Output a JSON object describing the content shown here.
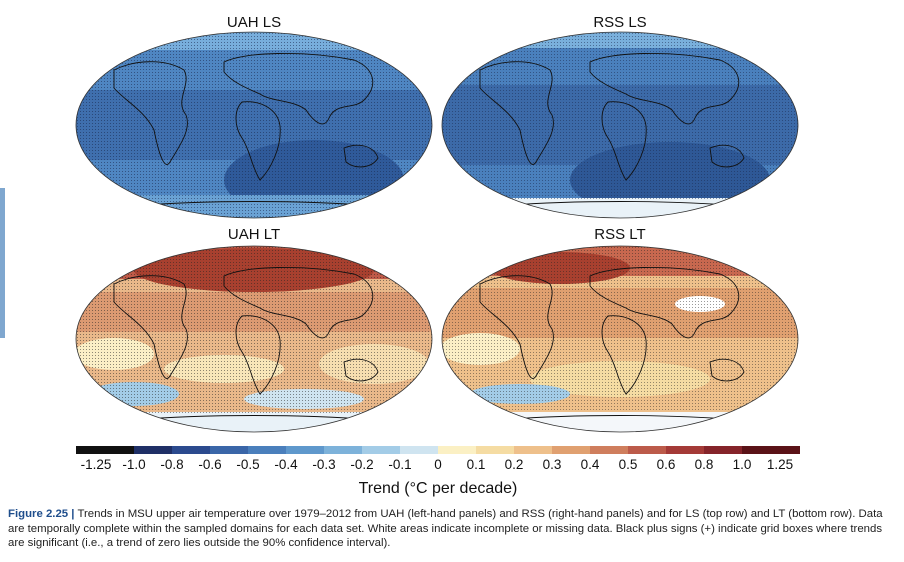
{
  "panels": [
    {
      "id": "uah-ls",
      "title": "UAH LS",
      "layer": "LS",
      "dataset": "UAH"
    },
    {
      "id": "rss-ls",
      "title": "RSS LS",
      "layer": "LS",
      "dataset": "RSS"
    },
    {
      "id": "uah-lt",
      "title": "UAH LT",
      "layer": "LT",
      "dataset": "UAH"
    },
    {
      "id": "rss-lt",
      "title": "RSS LT",
      "layer": "LT",
      "dataset": "RSS"
    }
  ],
  "colorbar": {
    "ticks": [
      "-1.25",
      "-1.0",
      "-0.8",
      "-0.6",
      "-0.5",
      "-0.4",
      "-0.3",
      "-0.2",
      "-0.1",
      "0",
      "0.1",
      "0.2",
      "0.3",
      "0.4",
      "0.5",
      "0.6",
      "0.8",
      "1.0",
      "1.25"
    ],
    "colors": [
      "#111111",
      "#1f2f66",
      "#2b4a8e",
      "#3a66a8",
      "#4a7fbc",
      "#5f98cc",
      "#7db2da",
      "#a3cce7",
      "#cfe4f0",
      "#fbf0c4",
      "#f5dca3",
      "#eec08b",
      "#e0a070",
      "#cf7e5d",
      "#bc5b4a",
      "#a43a37",
      "#85242a",
      "#5a1217"
    ],
    "label": "Trend (°C per decade)"
  },
  "caption": {
    "figure_label": "Figure 2.25 |",
    "text": "Trends in MSU upper air temperature over 1979–2012 from UAH (left-hand panels) and RSS (right-hand panels) and for LS (top row) and LT (bottom row). Data are temporally complete within the sampled domains for each data set. White areas indicate incomplete or missing data. Black plus signs (+) indicate grid boxes where trends are significant (i.e., a trend of zero lies outside the 90% confidence interval)."
  }
}
